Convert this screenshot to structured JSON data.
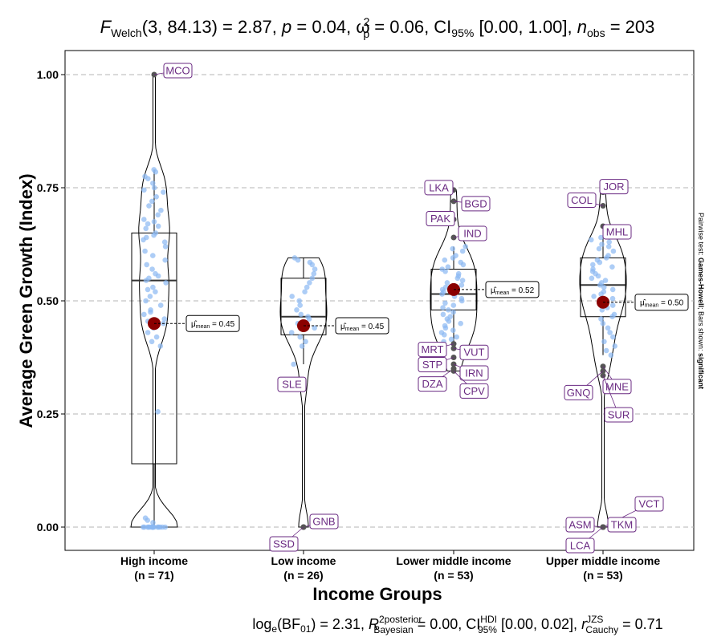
{
  "chart_data": {
    "type": "violin-box",
    "title_text": {
      "f_main": "F",
      "f_sub": "Welch",
      "args": "(3, 84.13) = 2.87, ",
      "p": "p",
      "p_rest": " = 0.04, ",
      "omega": "ω",
      "omega_hat": "^",
      "omega_sup": "2",
      "omega_sub": "p",
      "omega_rest": " = 0.06, CI",
      "ci_sub": "95%",
      "ci_rest": " [0.00, 1.00], ",
      "n": "n",
      "n_sub": "obs",
      "n_rest": " = 203"
    },
    "caption_text": {
      "log": "log",
      "log_sub": "e",
      "bf": "(BF",
      "bf_sub": "01",
      "bf_rest": ") = 2.31, ",
      "r": "R",
      "r_hat": "^",
      "r_sup": "2",
      "r_sup2": "posterior",
      "r_sub": "Bayesian",
      "r_rest": " = 0.00, CI",
      "ci_sup": "HDI",
      "ci_sub": "95%",
      "ci_rest": " [0.00, 0.02], ",
      "rc": "r",
      "rc_sup": "JZS",
      "rc_sub": "Cauchy",
      "rc_rest": " = 0.71"
    },
    "xlabel": "Income Groups",
    "ylabel": "Average Green Growth (Index)",
    "ylim": [
      -0.04,
      1.05
    ],
    "yticks": [
      "0.00",
      "0.25",
      "0.50",
      "0.75",
      "1.00"
    ],
    "side_note": {
      "prefix": "Pairwise test: ",
      "test": "Games-Howell",
      "mid": "; Bars shown: ",
      "shown": "significant"
    },
    "groups": [
      {
        "name": "High income",
        "n_label": "(n = 71)",
        "box": {
          "q1": 0.14,
          "median": 0.545,
          "q3": 0.65,
          "whisker_low": 0.0,
          "whisker_high": 0.79
        },
        "mean": 0.45,
        "mean_label": "= 0.45",
        "outliers": [
          {
            "label": "MCO",
            "value": 1.0
          }
        ],
        "points": [
          0.79,
          0.785,
          0.775,
          0.77,
          0.76,
          0.75,
          0.745,
          0.74,
          0.73,
          0.72,
          0.71,
          0.7,
          0.69,
          0.68,
          0.675,
          0.67,
          0.665,
          0.66,
          0.65,
          0.645,
          0.64,
          0.635,
          0.63,
          0.62,
          0.61,
          0.6,
          0.59,
          0.58,
          0.57,
          0.56,
          0.555,
          0.55,
          0.545,
          0.54,
          0.53,
          0.525,
          0.52,
          0.51,
          0.5,
          0.49,
          0.48,
          0.475,
          0.47,
          0.46,
          0.455,
          0.45,
          0.44,
          0.43,
          0.42,
          0.41,
          0.4,
          0.255,
          0.02,
          0.015,
          0.01,
          0.0,
          0.0,
          0.0,
          0.0,
          0.0,
          0.0,
          0.0,
          0.0,
          0.0,
          0.0,
          0.0,
          0.0,
          0.0,
          0.0,
          0.0,
          0.0
        ]
      },
      {
        "name": "Low income",
        "n_label": "(n = 26)",
        "box": {
          "q1": 0.425,
          "median": 0.465,
          "q3": 0.55,
          "whisker_low": 0.36,
          "whisker_high": 0.595
        },
        "mean": 0.445,
        "mean_label": "= 0.45",
        "outliers": [
          {
            "label": "SLE",
            "value": 0.31
          },
          {
            "label": "GNB",
            "value": 0.0
          },
          {
            "label": "SSD",
            "value": 0.0
          }
        ],
        "points": [
          0.595,
          0.59,
          0.585,
          0.58,
          0.57,
          0.56,
          0.55,
          0.54,
          0.53,
          0.52,
          0.51,
          0.5,
          0.49,
          0.48,
          0.47,
          0.465,
          0.46,
          0.45,
          0.44,
          0.43,
          0.42,
          0.41,
          0.4,
          0.36
        ]
      },
      {
        "name": "Lower middle income",
        "n_label": "(n = 53)",
        "box": {
          "q1": 0.48,
          "median": 0.515,
          "q3": 0.57,
          "whisker_low": 0.41,
          "whisker_high": 0.62
        },
        "mean": 0.525,
        "mean_label": "= 0.52",
        "outliers": [
          {
            "label": "LKA",
            "value": 0.745
          },
          {
            "label": "BGD",
            "value": 0.72
          },
          {
            "label": "PAK",
            "value": 0.68
          },
          {
            "label": "IND",
            "value": 0.64
          },
          {
            "label": "MRT",
            "value": 0.405
          },
          {
            "label": "VUT",
            "value": 0.395
          },
          {
            "label": "STP",
            "value": 0.375
          },
          {
            "label": "IRN",
            "value": 0.36
          },
          {
            "label": "DZA",
            "value": 0.35
          },
          {
            "label": "CPV",
            "value": 0.345
          }
        ],
        "points": [
          0.62,
          0.615,
          0.61,
          0.6,
          0.595,
          0.59,
          0.585,
          0.58,
          0.575,
          0.57,
          0.565,
          0.56,
          0.555,
          0.55,
          0.545,
          0.54,
          0.535,
          0.53,
          0.525,
          0.52,
          0.515,
          0.51,
          0.505,
          0.5,
          0.495,
          0.49,
          0.485,
          0.48,
          0.475,
          0.47,
          0.465,
          0.46,
          0.455,
          0.45,
          0.445,
          0.44,
          0.43,
          0.42,
          0.41,
          0.415,
          0.425,
          0.435
        ]
      },
      {
        "name": "Upper middle income",
        "n_label": "(n = 53)",
        "box": {
          "q1": 0.465,
          "median": 0.535,
          "q3": 0.595,
          "whisker_low": 0.38,
          "whisker_high": 0.64
        },
        "mean": 0.497,
        "mean_label": "= 0.50",
        "outliers": [
          {
            "label": "JOR",
            "value": 0.74
          },
          {
            "label": "COL",
            "value": 0.71
          },
          {
            "label": "MHL",
            "value": 0.665
          },
          {
            "label": "MNE",
            "value": 0.355
          },
          {
            "label": "GNQ",
            "value": 0.345
          },
          {
            "label": "SUR",
            "value": 0.335
          },
          {
            "label": "VCT",
            "value": 0.0
          },
          {
            "label": "TKM",
            "value": 0.0
          },
          {
            "label": "ASM",
            "value": 0.0
          },
          {
            "label": "LCA",
            "value": 0.0
          }
        ],
        "points": [
          0.64,
          0.635,
          0.63,
          0.625,
          0.62,
          0.615,
          0.61,
          0.6,
          0.595,
          0.59,
          0.585,
          0.58,
          0.575,
          0.57,
          0.565,
          0.56,
          0.555,
          0.55,
          0.545,
          0.54,
          0.535,
          0.53,
          0.525,
          0.52,
          0.515,
          0.51,
          0.505,
          0.5,
          0.495,
          0.49,
          0.485,
          0.48,
          0.47,
          0.465,
          0.46,
          0.45,
          0.44,
          0.43,
          0.42,
          0.41,
          0.4,
          0.39,
          0.38
        ]
      }
    ],
    "colors": {
      "points": "#8ab8f2",
      "outlier": "#555555",
      "mean": "#8b0000",
      "label_border": "#6a2a82",
      "grid": "#b5b5b5"
    }
  }
}
